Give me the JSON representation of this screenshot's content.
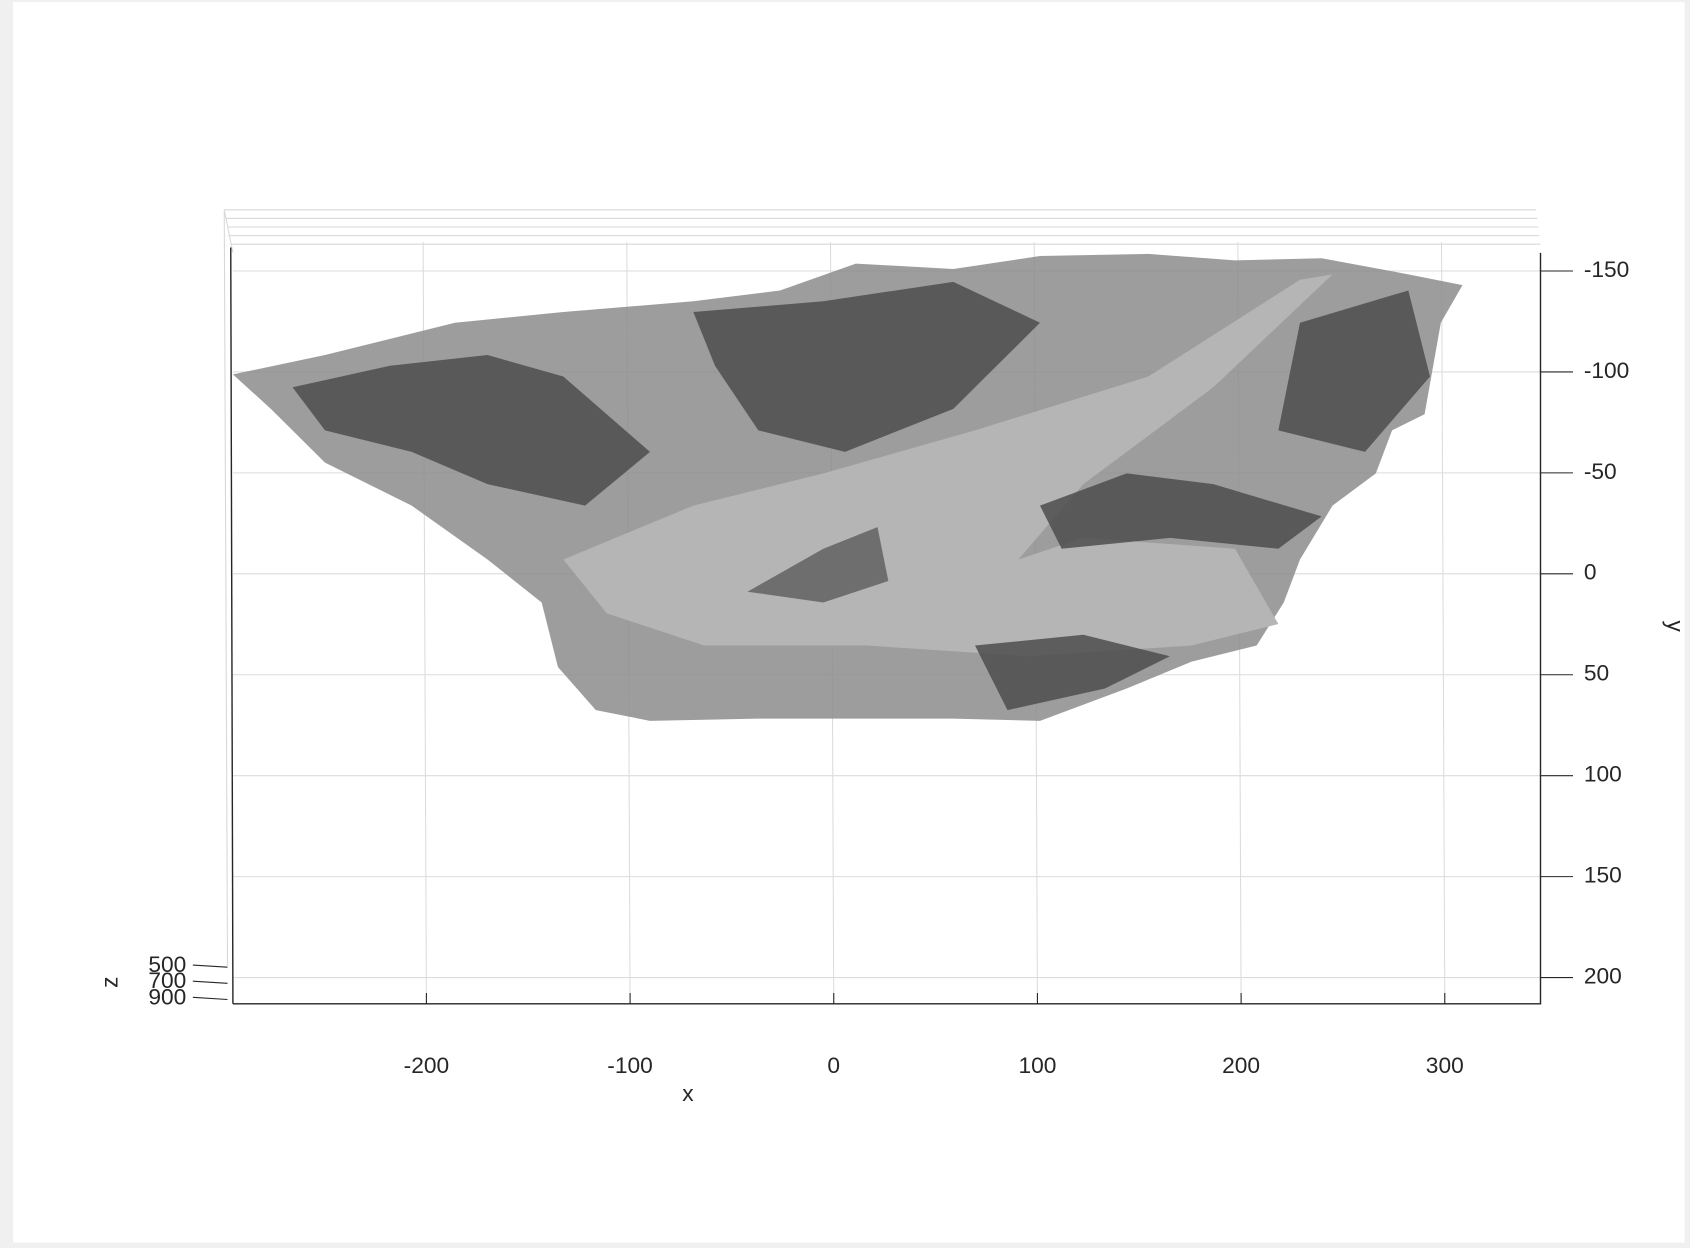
{
  "chart_data": {
    "type": "scatter3d",
    "xlabel": "x",
    "ylabel": "y",
    "zlabel": "z",
    "xlim": [
      -295,
      347
    ],
    "xticks": [
      -200,
      -100,
      0,
      100,
      200,
      300
    ],
    "ylim": [
      -159,
      213
    ],
    "yticks": [
      -150,
      -100,
      -50,
      0,
      50,
      100,
      150,
      200
    ],
    "y_reversed": true,
    "zlim": [
      500,
      900
    ],
    "zticks": [
      500,
      700,
      900
    ],
    "grid": true
  }
}
